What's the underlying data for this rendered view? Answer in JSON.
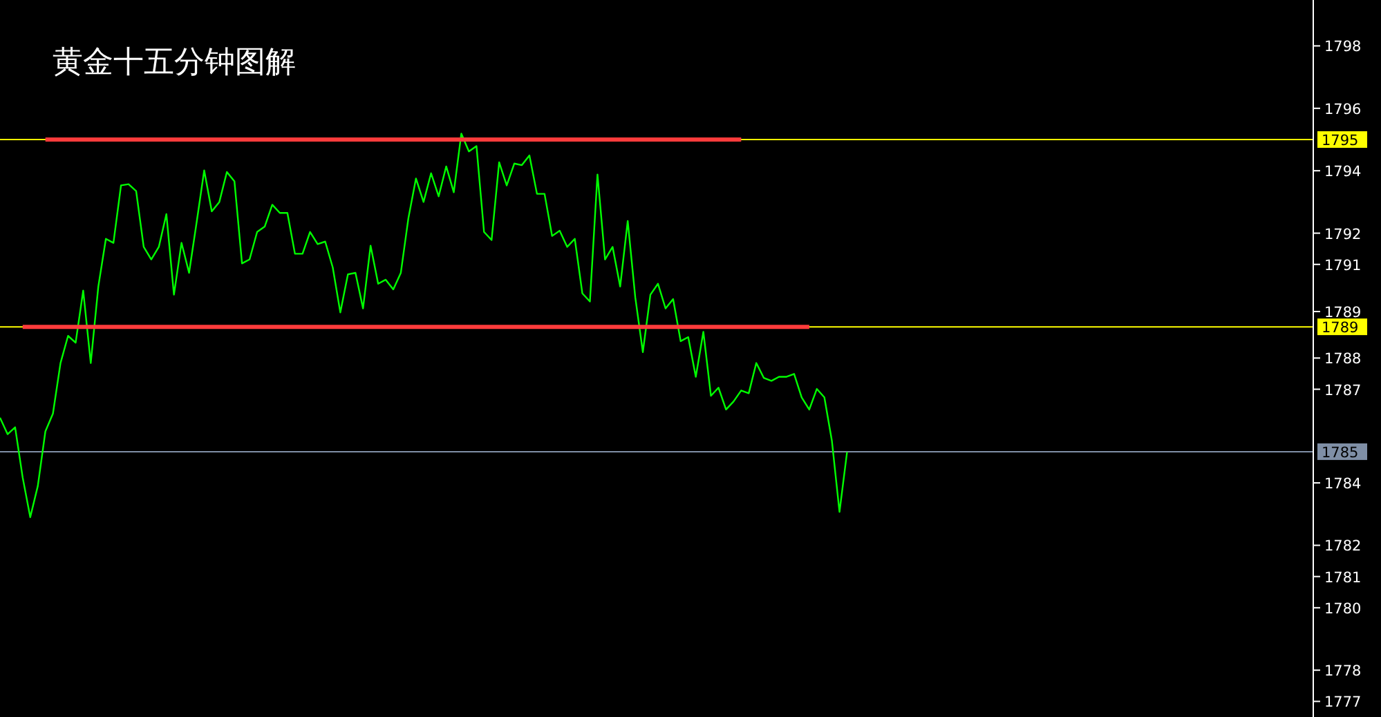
{
  "chart_data": {
    "type": "line",
    "title": "黄金十五分钟图解",
    "categories": [
      null,
      null,
      null,
      null,
      null,
      null,
      null,
      null,
      null,
      null,
      null,
      null,
      null,
      null,
      null,
      null,
      null,
      null,
      null,
      null,
      null,
      null,
      null,
      null,
      null,
      null,
      null,
      null,
      null,
      null,
      null,
      null,
      null,
      null,
      null,
      null,
      null,
      null,
      null,
      null,
      null,
      null,
      null,
      null,
      null,
      null,
      null,
      null,
      null,
      null,
      null,
      null,
      null,
      null,
      null,
      null,
      null,
      null,
      null,
      null,
      null,
      null,
      null,
      null,
      null,
      null,
      null,
      null,
      null,
      null,
      null,
      null,
      null,
      null,
      null,
      null,
      null,
      null,
      null,
      null,
      null,
      null,
      null,
      null,
      null,
      null,
      null,
      null,
      null,
      null,
      null,
      null,
      null,
      null,
      null,
      null,
      null,
      null,
      null,
      null,
      null,
      null,
      null,
      null,
      null,
      null,
      null,
      null,
      null,
      null,
      null,
      null,
      null
    ],
    "ylim": [
      1776.5,
      1799.47
    ],
    "tick_labels": "y",
    "grid": false,
    "yticks": [
      1798,
      1796,
      1794,
      1792,
      1791,
      {
        "value": 1789.49,
        "label": "1789"
      },
      1788,
      1787,
      1784,
      1782,
      1781,
      1780,
      1778,
      1777
    ],
    "ref_lines": [
      {
        "axis": "y",
        "value": 1795,
        "label": "1795",
        "color": "#ffff00"
      },
      {
        "axis": "y",
        "value": 1789,
        "label": "1789",
        "color": "#ffff00"
      },
      {
        "axis": "y",
        "value": 1785,
        "label": "1785",
        "color": "#7f8fa6"
      }
    ],
    "series": [
      {
        "color": "#00ff00",
        "values": [
          1786.09,
          1785.56,
          1785.78,
          1784.17,
          1782.9,
          1783.9,
          1785.65,
          1786.22,
          1787.84,
          1788.71,
          1788.49,
          1790.16,
          1787.84,
          1790.29,
          1791.82,
          1791.69,
          1793.53,
          1793.57,
          1793.35,
          1791.56,
          1791.16,
          1791.56,
          1792.61,
          1790.03,
          1791.69,
          1790.73,
          1792.35,
          1794.01,
          1792.7,
          1793.0,
          1793.96,
          1793.66,
          1791.03,
          1791.16,
          1792.04,
          1792.21,
          1792.91,
          1792.65,
          1792.65,
          1791.34,
          1791.34,
          1792.04,
          1791.65,
          1791.73,
          1790.9,
          1789.46,
          1790.68,
          1790.73,
          1789.59,
          1791.6,
          1790.38,
          1790.51,
          1790.2,
          1790.73,
          1792.48,
          1793.75,
          1793.0,
          1793.92,
          1793.18,
          1794.14,
          1793.31,
          1795.19,
          1794.62,
          1794.79,
          1792.04,
          1791.78,
          1794.27,
          1793.53,
          1794.23,
          1794.18,
          1794.49,
          1793.26,
          1793.26,
          1791.91,
          1792.08,
          1791.56,
          1791.82,
          1790.07,
          1789.81,
          1793.88,
          1791.16,
          1791.56,
          1790.29,
          1792.39,
          1789.94,
          1788.19,
          1790.03,
          1790.38,
          1789.59,
          1789.89,
          1788.54,
          1788.67,
          1787.4,
          1788.84,
          1786.79,
          1787.05,
          1786.35,
          1786.61,
          1786.96,
          1786.87,
          1787.84,
          1787.36,
          1787.27,
          1787.4,
          1787.4,
          1787.49,
          1786.74,
          1786.35,
          1787.01,
          1786.74,
          1785.34,
          1783.07,
          1784.99
        ]
      },
      {
        "color": "#ff3b3b",
        "values": [
          null,
          null,
          null,
          null,
          null,
          null,
          1795,
          1795,
          1795,
          1795,
          1795,
          1795,
          1795,
          1795,
          1795,
          1795,
          1795,
          1795,
          1795,
          1795,
          1795,
          1795,
          1795,
          1795,
          1795,
          1795,
          1795,
          1795,
          1795,
          1795,
          1795,
          1795,
          1795,
          1795,
          1795,
          1795,
          1795,
          1795,
          1795,
          1795,
          1795,
          1795,
          1795,
          1795,
          1795,
          1795,
          1795,
          1795,
          1795,
          1795,
          1795,
          1795,
          1795,
          1795,
          1795,
          1795,
          1795,
          1795,
          1795,
          1795,
          1795,
          1795,
          1795,
          1795,
          1795,
          1795,
          1795,
          1795,
          1795,
          1795,
          1795,
          1795,
          1795,
          1795,
          1795,
          1795,
          1795,
          1795,
          1795,
          1795,
          1795,
          1795,
          1795,
          1795,
          1795,
          1795,
          1795,
          1795,
          1795,
          1795,
          1795,
          1795,
          1795,
          1795,
          1795,
          1795,
          1795,
          1795,
          1795,
          null,
          null,
          null,
          null,
          null,
          null,
          null,
          null,
          null,
          null,
          null,
          null,
          null,
          null
        ]
      },
      {
        "color": "#ff3b3b",
        "values": [
          null,
          null,
          null,
          1789,
          1789,
          1789,
          1789,
          1789,
          1789,
          1789,
          1789,
          1789,
          1789,
          1789,
          1789,
          1789,
          1789,
          1789,
          1789,
          1789,
          1789,
          1789,
          1789,
          1789,
          1789,
          1789,
          1789,
          1789,
          1789,
          1789,
          1789,
          1789,
          1789,
          1789,
          1789,
          1789,
          1789,
          1789,
          1789,
          1789,
          1789,
          1789,
          1789,
          1789,
          1789,
          1789,
          1789,
          1789,
          1789,
          1789,
          1789,
          1789,
          1789,
          1789,
          1789,
          1789,
          1789,
          1789,
          1789,
          1789,
          1789,
          1789,
          1789,
          1789,
          1789,
          1789,
          1789,
          1789,
          1789,
          1789,
          1789,
          1789,
          1789,
          1789,
          1789,
          1789,
          1789,
          1789,
          1789,
          1789,
          1789,
          1789,
          1789,
          1789,
          1789,
          1789,
          1789,
          1789,
          1789,
          1789,
          1789,
          1789,
          1789,
          1789,
          1789,
          1789,
          1789,
          1789,
          1789,
          1789,
          1789,
          1789,
          1789,
          1789,
          1789,
          1789,
          1789,
          1789,
          null,
          null,
          null,
          null,
          null
        ]
      }
    ]
  }
}
